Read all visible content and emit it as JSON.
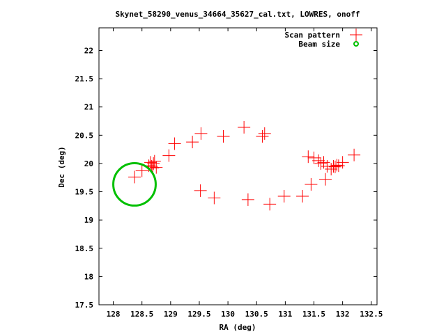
{
  "chart_data": {
    "type": "scatter",
    "title": "Skynet_58290_venus_34664_35627_cal.txt, LOWRES, onoff",
    "xlabel": "RA (deg)",
    "ylabel": "Dec (deg)",
    "xlim": [
      127.75,
      132.6
    ],
    "ylim": [
      17.5,
      22.4
    ],
    "x_ticks": [
      128,
      128.5,
      129,
      129.5,
      130,
      130.5,
      131,
      131.5,
      132,
      132.5
    ],
    "x_tick_labels": [
      "128",
      "128.5",
      "129",
      "129.5",
      "130",
      "130.5",
      "131",
      "131.5",
      "132",
      "132.5"
    ],
    "y_ticks": [
      17.5,
      18,
      18.5,
      19,
      19.5,
      20,
      20.5,
      21,
      21.5,
      22
    ],
    "y_tick_labels": [
      "17.5",
      "18",
      "18.5",
      "19",
      "19.5",
      "20",
      "20.5",
      "21",
      "21.5",
      "22"
    ],
    "grid": false,
    "legend_position": "top-right",
    "legend": [
      {
        "label": "Scan pattern",
        "marker": "plus",
        "color": "#ff0000"
      },
      {
        "label": "Beam size",
        "marker": "circle",
        "color": "#00c000"
      }
    ],
    "series": [
      {
        "name": "Scan pattern",
        "color": "#ff0000",
        "marker": "plus",
        "x": [
          128.37,
          128.5,
          128.62,
          128.65,
          128.67,
          128.69,
          128.7,
          128.72,
          128.75,
          128.97,
          129.07,
          129.38,
          129.53,
          129.92,
          130.28,
          130.6,
          130.64,
          131.4,
          131.5,
          131.58,
          131.62,
          131.67,
          131.73,
          131.8,
          131.84,
          131.87,
          131.9,
          131.93,
          132.0,
          132.2,
          131.7,
          131.45,
          131.3,
          130.98,
          130.73,
          130.35,
          129.76,
          129.52
        ],
        "y": [
          19.76,
          19.87,
          19.96,
          20.02,
          19.95,
          19.92,
          20.0,
          20.04,
          19.93,
          20.14,
          20.35,
          20.38,
          20.53,
          20.48,
          20.64,
          20.48,
          20.53,
          20.12,
          20.1,
          20.05,
          20.0,
          20.02,
          19.95,
          19.9,
          19.95,
          19.94,
          19.97,
          19.96,
          20.02,
          20.15,
          19.72,
          19.63,
          19.42,
          19.42,
          19.28,
          19.36,
          19.39,
          19.52
        ]
      },
      {
        "name": "Beam size",
        "color": "#00c000",
        "shape": "circle",
        "center": [
          128.37,
          19.63
        ],
        "radius_deg": 0.37
      }
    ]
  }
}
